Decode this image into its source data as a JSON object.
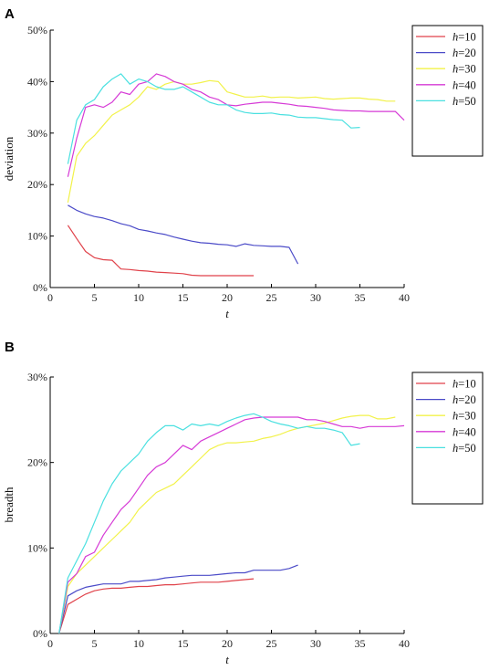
{
  "chart_data": [
    {
      "type": "line",
      "panel_label": "A",
      "xlabel": "t",
      "ylabel": "deviation",
      "xlim": [
        0,
        40
      ],
      "ylim": [
        0,
        50
      ],
      "xticks": [
        "0",
        "5",
        "10",
        "15",
        "20",
        "25",
        "30",
        "35",
        "40"
      ],
      "yticks": [
        "0%",
        "10%",
        "20%",
        "30%",
        "40%",
        "50%"
      ],
      "legend_position": "top-right",
      "series": [
        {
          "name_italic": "h",
          "name_suffix": "=10",
          "color": "#e0424a",
          "x": [
            2,
            3,
            4,
            5,
            6,
            7,
            8,
            9,
            10,
            11,
            12,
            13,
            14,
            15,
            16,
            17,
            18,
            19,
            20,
            21,
            22,
            23
          ],
          "y": [
            12.1,
            9.5,
            7.0,
            5.8,
            5.4,
            5.3,
            3.6,
            3.5,
            3.3,
            3.2,
            3.0,
            2.9,
            2.8,
            2.7,
            2.4,
            2.3,
            2.3,
            2.3,
            2.3,
            2.3,
            2.3,
            2.3
          ]
        },
        {
          "name_italic": "h",
          "name_suffix": "=20",
          "color": "#4b4bc8",
          "x": [
            2,
            3,
            4,
            5,
            6,
            7,
            8,
            9,
            10,
            11,
            12,
            13,
            14,
            15,
            16,
            17,
            18,
            19,
            20,
            21,
            22,
            23,
            24,
            25,
            26,
            27,
            28
          ],
          "y": [
            16.0,
            15.0,
            14.3,
            13.8,
            13.5,
            13.0,
            12.4,
            12.0,
            11.3,
            11.0,
            10.6,
            10.3,
            9.8,
            9.4,
            9.0,
            8.7,
            8.6,
            8.4,
            8.3,
            8.0,
            8.5,
            8.2,
            8.1,
            8.0,
            8.0,
            7.8,
            4.6
          ]
        },
        {
          "name_italic": "h",
          "name_suffix": "=30",
          "color": "#f2f24a",
          "x": [
            2,
            3,
            4,
            5,
            6,
            7,
            8,
            9,
            10,
            11,
            12,
            13,
            14,
            15,
            16,
            17,
            18,
            19,
            20,
            21,
            22,
            23,
            24,
            25,
            26,
            27,
            28,
            29,
            30,
            31,
            32,
            33,
            34,
            35,
            36,
            37,
            38,
            39
          ],
          "y": [
            16.5,
            25.5,
            28.0,
            29.5,
            31.5,
            33.5,
            34.5,
            35.5,
            37.0,
            39.0,
            38.5,
            39.5,
            40.0,
            39.5,
            39.5,
            39.8,
            40.2,
            40.0,
            38.0,
            37.5,
            37.0,
            37.0,
            37.2,
            36.9,
            37.0,
            37.0,
            36.8,
            36.9,
            37.0,
            36.7,
            36.6,
            36.7,
            36.8,
            36.8,
            36.6,
            36.5,
            36.2,
            36.2
          ]
        },
        {
          "name_italic": "h",
          "name_suffix": "=40",
          "color": "#d63ad6",
          "x": [
            2,
            3,
            4,
            5,
            6,
            7,
            8,
            9,
            10,
            11,
            12,
            13,
            14,
            15,
            16,
            17,
            18,
            19,
            20,
            21,
            22,
            23,
            24,
            25,
            26,
            27,
            28,
            29,
            30,
            31,
            32,
            33,
            34,
            35,
            36,
            37,
            38,
            39,
            40
          ],
          "y": [
            21.5,
            29.0,
            35.0,
            35.5,
            35.0,
            36.0,
            38.0,
            37.5,
            39.5,
            40.0,
            41.5,
            41.0,
            40.0,
            39.5,
            38.5,
            38.0,
            37.0,
            36.5,
            35.5,
            35.3,
            35.6,
            35.8,
            36.0,
            36.0,
            35.8,
            35.6,
            35.3,
            35.2,
            35.0,
            34.8,
            34.5,
            34.4,
            34.3,
            34.3,
            34.2,
            34.2,
            34.2,
            34.2,
            32.5
          ]
        },
        {
          "name_italic": "h",
          "name_suffix": "=50",
          "color": "#4ae0e0",
          "x": [
            2,
            3,
            4,
            5,
            6,
            7,
            8,
            9,
            10,
            11,
            12,
            13,
            14,
            15,
            16,
            17,
            18,
            19,
            20,
            21,
            22,
            23,
            24,
            25,
            26,
            27,
            28,
            29,
            30,
            31,
            32,
            33,
            34,
            35
          ],
          "y": [
            24.0,
            32.5,
            35.5,
            36.5,
            39.0,
            40.5,
            41.5,
            39.5,
            40.5,
            40.0,
            39.0,
            38.5,
            38.5,
            39.0,
            38.0,
            37.0,
            36.0,
            35.5,
            35.5,
            34.5,
            34.0,
            33.8,
            33.8,
            33.9,
            33.6,
            33.5,
            33.1,
            33.0,
            33.0,
            32.8,
            32.6,
            32.5,
            31.0,
            31.1
          ]
        }
      ]
    },
    {
      "type": "line",
      "panel_label": "B",
      "xlabel": "t",
      "ylabel": "breadth",
      "xlim": [
        0,
        40
      ],
      "ylim": [
        0,
        30
      ],
      "xticks": [
        "0",
        "5",
        "10",
        "15",
        "20",
        "25",
        "30",
        "35",
        "40"
      ],
      "yticks": [
        "0%",
        "10%",
        "20%",
        "30%"
      ],
      "legend_position": "top-right",
      "series": [
        {
          "name_italic": "h",
          "name_suffix": "=10",
          "color": "#e0424a",
          "x": [
            1,
            2,
            3,
            4,
            5,
            6,
            7,
            8,
            9,
            10,
            11,
            12,
            13,
            14,
            15,
            16,
            17,
            18,
            19,
            20,
            21,
            22,
            23
          ],
          "y": [
            0,
            3.4,
            4.0,
            4.6,
            5.0,
            5.2,
            5.3,
            5.3,
            5.4,
            5.5,
            5.5,
            5.6,
            5.7,
            5.7,
            5.8,
            5.9,
            6.0,
            6.0,
            6.0,
            6.1,
            6.2,
            6.3,
            6.4
          ]
        },
        {
          "name_italic": "h",
          "name_suffix": "=20",
          "color": "#4b4bc8",
          "x": [
            1,
            2,
            3,
            4,
            5,
            6,
            7,
            8,
            9,
            10,
            11,
            12,
            13,
            14,
            15,
            16,
            17,
            18,
            19,
            20,
            21,
            22,
            23,
            24,
            25,
            26,
            27,
            28
          ],
          "y": [
            0,
            4.4,
            5.0,
            5.4,
            5.6,
            5.8,
            5.8,
            5.8,
            6.1,
            6.1,
            6.2,
            6.3,
            6.5,
            6.6,
            6.7,
            6.8,
            6.8,
            6.8,
            6.9,
            7.0,
            7.1,
            7.1,
            7.4,
            7.4,
            7.4,
            7.4,
            7.6,
            8.0
          ]
        },
        {
          "name_italic": "h",
          "name_suffix": "=30",
          "color": "#f2f24a",
          "x": [
            1,
            2,
            3,
            4,
            5,
            6,
            7,
            8,
            9,
            10,
            11,
            12,
            13,
            14,
            15,
            16,
            17,
            18,
            19,
            20,
            21,
            22,
            23,
            24,
            25,
            26,
            27,
            28,
            29,
            30,
            31,
            32,
            33,
            34,
            35,
            36,
            37,
            38,
            39
          ],
          "y": [
            0,
            5.5,
            7.0,
            8.0,
            9.0,
            10.0,
            11.0,
            12.0,
            13.0,
            14.5,
            15.5,
            16.5,
            17.0,
            17.5,
            18.5,
            19.5,
            20.5,
            21.5,
            22.0,
            22.3,
            22.3,
            22.4,
            22.5,
            22.8,
            23.0,
            23.3,
            23.7,
            24.0,
            24.2,
            24.4,
            24.6,
            24.9,
            25.2,
            25.4,
            25.5,
            25.5,
            25.1,
            25.1,
            25.3
          ]
        },
        {
          "name_italic": "h",
          "name_suffix": "=40",
          "color": "#d63ad6",
          "x": [
            1,
            2,
            3,
            4,
            5,
            6,
            7,
            8,
            9,
            10,
            11,
            12,
            13,
            14,
            15,
            16,
            17,
            18,
            19,
            20,
            21,
            22,
            23,
            24,
            25,
            26,
            27,
            28,
            29,
            30,
            31,
            32,
            33,
            34,
            35,
            36,
            37,
            38,
            39,
            40
          ],
          "y": [
            0,
            6.0,
            7.0,
            9.0,
            9.5,
            11.5,
            13.0,
            14.5,
            15.5,
            17.0,
            18.5,
            19.5,
            20.0,
            21.0,
            22.0,
            21.5,
            22.5,
            23.0,
            23.5,
            24.0,
            24.5,
            25.0,
            25.2,
            25.3,
            25.3,
            25.3,
            25.3,
            25.3,
            25.0,
            25.0,
            24.8,
            24.5,
            24.2,
            24.2,
            24.0,
            24.2,
            24.2,
            24.2,
            24.2,
            24.3
          ]
        },
        {
          "name_italic": "h",
          "name_suffix": "=50",
          "color": "#4ae0e0",
          "x": [
            1,
            2,
            3,
            4,
            5,
            6,
            7,
            8,
            9,
            10,
            11,
            12,
            13,
            14,
            15,
            16,
            17,
            18,
            19,
            20,
            21,
            22,
            23,
            24,
            25,
            26,
            27,
            28,
            29,
            30,
            31,
            32,
            33,
            34,
            35
          ],
          "y": [
            0,
            6.5,
            8.5,
            10.5,
            13.0,
            15.5,
            17.5,
            19.0,
            20.0,
            21.0,
            22.5,
            23.5,
            24.3,
            24.3,
            23.8,
            24.5,
            24.3,
            24.5,
            24.3,
            24.8,
            25.2,
            25.5,
            25.7,
            25.3,
            24.8,
            24.5,
            24.3,
            24.0,
            24.2,
            24.0,
            24.0,
            23.8,
            23.5,
            22.0,
            22.2
          ]
        }
      ]
    }
  ]
}
